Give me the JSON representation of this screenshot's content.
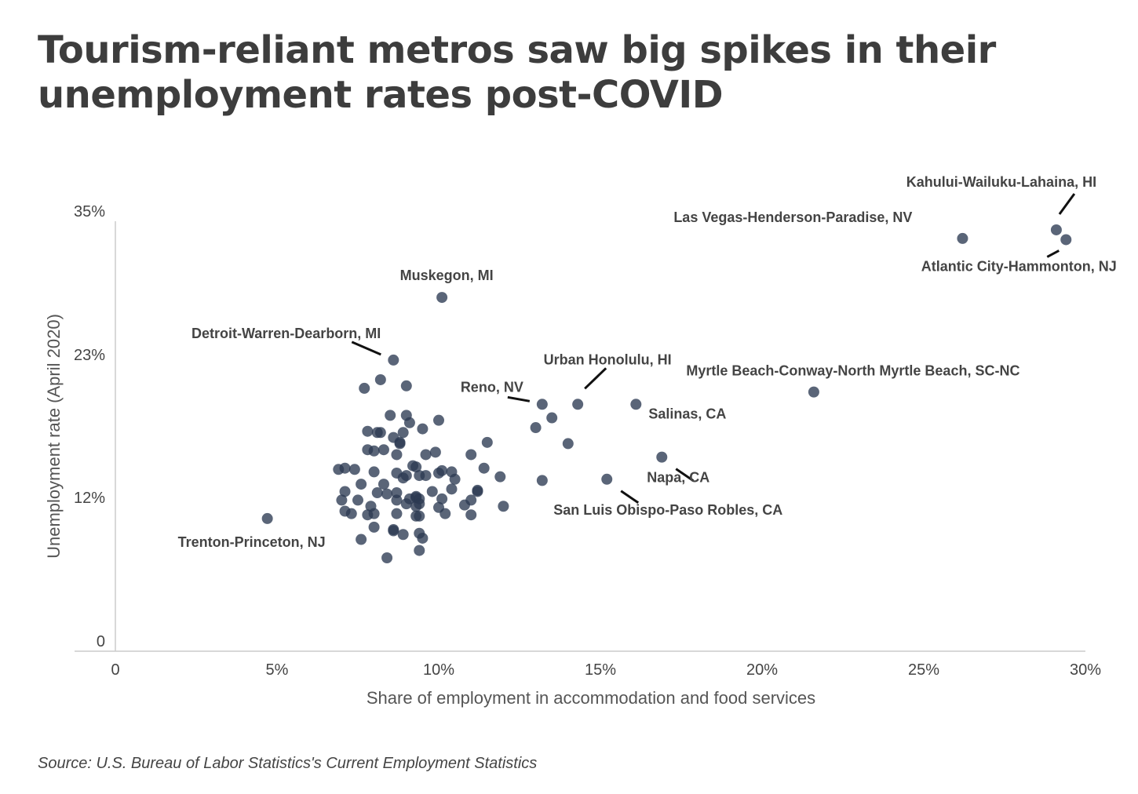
{
  "title": "Tourism-reliant metros saw big spikes in their unemployment rates post-COVID",
  "source": "Source: U.S. Bureau of Labor Statistics's Current Employment Statistics",
  "colors": {
    "point": "#2c3a52",
    "axis": "#cccccc",
    "leader": "#111111"
  },
  "chart_data": {
    "type": "scatter",
    "xlabel": "Share of employment in accommodation and food services",
    "ylabel": "Unemployment rate (April 2020)",
    "xlim": [
      0,
      30
    ],
    "ylim": [
      0,
      35
    ],
    "x_ticks": [
      {
        "value": 0,
        "label": "0"
      },
      {
        "value": 5,
        "label": "5%"
      },
      {
        "value": 10,
        "label": "10%"
      },
      {
        "value": 15,
        "label": "15%"
      },
      {
        "value": 20,
        "label": "20%"
      },
      {
        "value": 25,
        "label": "25%"
      },
      {
        "value": 30,
        "label": "30%"
      }
    ],
    "y_ticks": [
      {
        "value": 0,
        "label": "0"
      },
      {
        "value": 11.7,
        "label": "12%"
      },
      {
        "value": 23.3,
        "label": "23%"
      },
      {
        "value": 35,
        "label": "35%"
      }
    ],
    "grid": false,
    "annotations": [
      {
        "text": "Kahului-Wailuku-Lahaina, HI",
        "x": 29.1,
        "y": 34.3
      },
      {
        "text": "Las Vegas-Henderson-Paradise, NV",
        "x": 26.2,
        "y": 33.6
      },
      {
        "text": "Atlantic City-Hammonton, NJ",
        "x": 29.4,
        "y": 33.5
      },
      {
        "text": "Muskegon, MI",
        "x": 10.1,
        "y": 28.8
      },
      {
        "text": "Detroit-Warren-Dearborn, MI",
        "x": 8.6,
        "y": 23.7
      },
      {
        "text": "Urban Honolulu, HI",
        "x": 14.3,
        "y": 20.1
      },
      {
        "text": "Reno, NV",
        "x": 13.2,
        "y": 20.1
      },
      {
        "text": "Myrtle Beach-Conway-North Myrtle Beach, SC-NC",
        "x": 21.6,
        "y": 21.1
      },
      {
        "text": "Salinas, CA",
        "x": 16.1,
        "y": 20.1
      },
      {
        "text": "Napa, CA",
        "x": 16.9,
        "y": 15.8
      },
      {
        "text": "San Luis Obispo-Paso Robles, CA",
        "x": 15.2,
        "y": 14.0
      },
      {
        "text": "Trenton-Princeton, NJ",
        "x": 4.7,
        "y": 10.8
      }
    ],
    "points": [
      [
        29.1,
        34.3
      ],
      [
        29.4,
        33.5
      ],
      [
        26.2,
        33.6
      ],
      [
        21.6,
        21.1
      ],
      [
        10.1,
        28.8
      ],
      [
        8.6,
        23.7
      ],
      [
        8.2,
        22.1
      ],
      [
        7.7,
        21.4
      ],
      [
        9.0,
        21.6
      ],
      [
        14.3,
        20.1
      ],
      [
        13.2,
        20.1
      ],
      [
        16.1,
        20.1
      ],
      [
        8.5,
        19.2
      ],
      [
        9.0,
        19.2
      ],
      [
        9.1,
        18.6
      ],
      [
        10.0,
        18.8
      ],
      [
        9.5,
        18.1
      ],
      [
        13.5,
        19.0
      ],
      [
        13.0,
        18.2
      ],
      [
        7.8,
        17.9
      ],
      [
        8.1,
        17.8
      ],
      [
        8.2,
        17.8
      ],
      [
        8.9,
        17.8
      ],
      [
        8.6,
        17.4
      ],
      [
        8.8,
        17.0
      ],
      [
        8.8,
        16.9
      ],
      [
        14.0,
        16.9
      ],
      [
        11.5,
        17.0
      ],
      [
        7.8,
        16.4
      ],
      [
        8.0,
        16.3
      ],
      [
        8.3,
        16.4
      ],
      [
        8.7,
        16.0
      ],
      [
        9.6,
        16.0
      ],
      [
        9.9,
        16.2
      ],
      [
        11.0,
        16.0
      ],
      [
        16.9,
        15.8
      ],
      [
        6.9,
        14.8
      ],
      [
        7.1,
        14.9
      ],
      [
        7.4,
        14.8
      ],
      [
        8.0,
        14.6
      ],
      [
        8.7,
        14.5
      ],
      [
        9.2,
        15.1
      ],
      [
        9.3,
        15.0
      ],
      [
        9.0,
        14.3
      ],
      [
        9.6,
        14.3
      ],
      [
        10.0,
        14.5
      ],
      [
        10.1,
        14.7
      ],
      [
        10.4,
        14.6
      ],
      [
        10.5,
        14.0
      ],
      [
        11.4,
        14.9
      ],
      [
        11.9,
        14.2
      ],
      [
        15.2,
        14.0
      ],
      [
        13.2,
        13.9
      ],
      [
        7.6,
        13.6
      ],
      [
        8.3,
        13.6
      ],
      [
        8.9,
        14.1
      ],
      [
        9.4,
        14.3
      ],
      [
        7.1,
        13.0
      ],
      [
        8.1,
        12.9
      ],
      [
        8.4,
        12.8
      ],
      [
        8.7,
        12.9
      ],
      [
        9.1,
        12.4
      ],
      [
        9.3,
        12.6
      ],
      [
        9.4,
        12.4
      ],
      [
        9.8,
        13.0
      ],
      [
        10.1,
        12.4
      ],
      [
        10.4,
        13.2
      ],
      [
        11.2,
        13.0
      ],
      [
        11.2,
        13.1
      ],
      [
        7.0,
        12.3
      ],
      [
        7.5,
        12.3
      ],
      [
        7.9,
        11.8
      ],
      [
        8.7,
        12.3
      ],
      [
        9.3,
        12.5
      ],
      [
        9.0,
        12.0
      ],
      [
        9.3,
        11.8
      ],
      [
        9.4,
        12.0
      ],
      [
        10.0,
        11.7
      ],
      [
        10.8,
        11.9
      ],
      [
        11.0,
        12.3
      ],
      [
        12.0,
        11.8
      ],
      [
        7.1,
        11.4
      ],
      [
        7.3,
        11.2
      ],
      [
        7.8,
        11.1
      ],
      [
        8.0,
        11.2
      ],
      [
        8.7,
        11.2
      ],
      [
        9.3,
        11.0
      ],
      [
        9.4,
        11.0
      ],
      [
        10.2,
        11.2
      ],
      [
        11.0,
        11.1
      ],
      [
        4.7,
        10.8
      ],
      [
        8.0,
        10.1
      ],
      [
        8.6,
        9.9
      ],
      [
        8.6,
        9.8
      ],
      [
        8.9,
        9.5
      ],
      [
        9.4,
        9.6
      ],
      [
        9.5,
        9.2
      ],
      [
        7.6,
        9.1
      ],
      [
        9.4,
        8.2
      ],
      [
        8.4,
        7.6
      ]
    ]
  }
}
